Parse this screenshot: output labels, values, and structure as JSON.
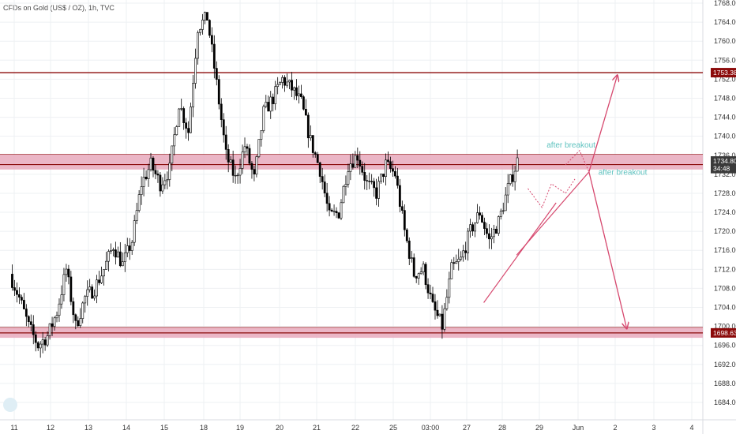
{
  "header": {
    "title": "CFDs on Gold (US$ / OZ), 1h, TVC"
  },
  "chart_data": {
    "type": "candlestick",
    "title": "CFDs on Gold (US$ / OZ), 1h, TVC",
    "ylim": [
      1680,
      1768
    ],
    "y_ticks": [
      "1684.00",
      "1688.00",
      "1692.00",
      "1696.00",
      "1700.00",
      "1704.00",
      "1708.00",
      "1712.00",
      "1716.00",
      "1720.00",
      "1724.00",
      "1728.00",
      "1732.00",
      "1736.00",
      "1740.00",
      "1744.00",
      "1748.00",
      "1752.00",
      "1756.00",
      "1760.00",
      "1764.00",
      "1768.00"
    ],
    "x_ticks": [
      "11",
      "12",
      "13",
      "14",
      "15",
      "18",
      "19",
      "20",
      "21",
      "22",
      "25",
      "03:00",
      "27",
      "28",
      "29",
      "Jun",
      "2",
      "3",
      "4"
    ],
    "price_path": [
      [
        0,
        1711
      ],
      [
        1,
        1706
      ],
      [
        2,
        1700
      ],
      [
        3,
        1696
      ],
      [
        4,
        1698
      ],
      [
        5,
        1703
      ],
      [
        6,
        1712
      ],
      [
        7,
        1700
      ],
      [
        8,
        1706
      ],
      [
        9,
        1708
      ],
      [
        10,
        1712
      ],
      [
        11,
        1717
      ],
      [
        12,
        1713
      ],
      [
        13,
        1718
      ],
      [
        14,
        1730
      ],
      [
        15,
        1734
      ],
      [
        16,
        1730
      ],
      [
        17,
        1733
      ],
      [
        18,
        1747
      ],
      [
        19,
        1741
      ],
      [
        20,
        1763
      ],
      [
        21,
        1765
      ],
      [
        22,
        1751
      ],
      [
        23,
        1736
      ],
      [
        24,
        1731
      ],
      [
        25,
        1738
      ],
      [
        26,
        1731
      ],
      [
        27,
        1745
      ],
      [
        28,
        1748
      ],
      [
        29,
        1752
      ],
      [
        30,
        1750
      ],
      [
        31,
        1747
      ],
      [
        32,
        1739
      ],
      [
        33,
        1733
      ],
      [
        34,
        1723
      ],
      [
        35,
        1724
      ],
      [
        36,
        1734
      ],
      [
        37,
        1736
      ],
      [
        38,
        1730
      ],
      [
        39,
        1728
      ],
      [
        40,
        1734
      ],
      [
        41,
        1732
      ],
      [
        42,
        1720
      ],
      [
        43,
        1711
      ],
      [
        44,
        1712
      ],
      [
        45,
        1704
      ],
      [
        46,
        1700
      ],
      [
        47,
        1712
      ],
      [
        48,
        1714
      ],
      [
        49,
        1720
      ],
      [
        50,
        1724
      ],
      [
        51,
        1718
      ],
      [
        52,
        1722
      ],
      [
        53,
        1729
      ],
      [
        54,
        1734.8
      ]
    ],
    "levels": [
      {
        "label": "1753.38",
        "value": 1753.38,
        "color": "#8b0a0a",
        "zone": false
      },
      {
        "label": "1734.04",
        "value": 1734.04,
        "color": "#8b0a0a",
        "zone": true,
        "zone_low": 1733.0,
        "zone_high": 1736.2
      },
      {
        "label": "1698.63",
        "value": 1698.63,
        "color": "#8b0a0a",
        "zone": true,
        "zone_low": 1697.6,
        "zone_high": 1699.8
      }
    ],
    "price_tags": [
      {
        "label": "1734.80",
        "value": 1734.8,
        "color": "#3a3a3a"
      },
      {
        "label": "34:48",
        "value": 1733.2,
        "color": "#3a3a3a"
      }
    ],
    "annotations": [
      {
        "text": "after breakout",
        "x_index": 57.5,
        "y": 1737.6
      },
      {
        "text": "after breakout",
        "x_index": 63.0,
        "y": 1731.9
      }
    ],
    "projection": {
      "apex": [
        61.5,
        1732.5
      ],
      "up_target": [
        64.5,
        1753.38
      ],
      "down_target": [
        65.5,
        1699.0
      ]
    },
    "pattern_lines": [
      {
        "from": [
          50.3,
          1705.0
        ],
        "to": [
          58.0,
          1726.0
        ]
      },
      {
        "from": [
          53.8,
          1715.0
        ],
        "to": [
          61.5,
          1732.5
        ]
      }
    ],
    "accent_color": "#d6486e",
    "zone_color": "#e8a9bc"
  }
}
